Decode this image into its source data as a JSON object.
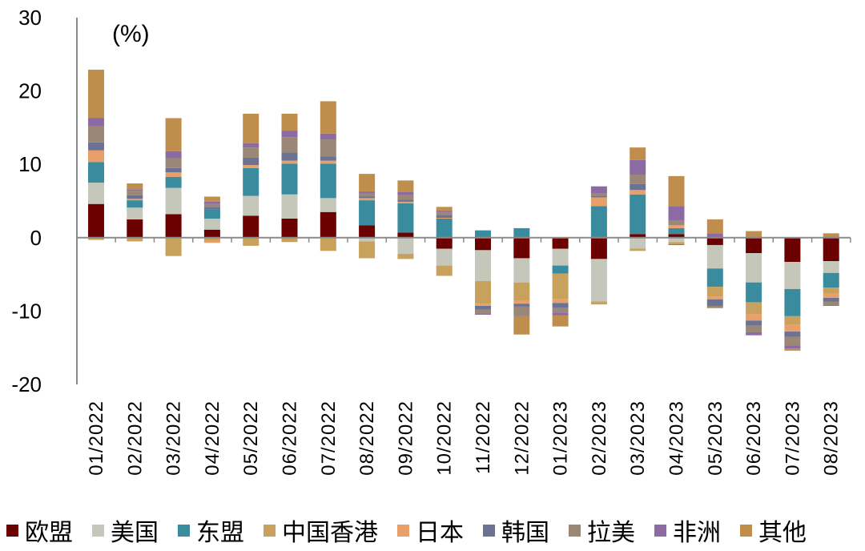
{
  "chart_data": {
    "type": "bar",
    "stacked": true,
    "unit_label": "(%)",
    "categories": [
      "01/2022",
      "02/2022",
      "03/2022",
      "04/2022",
      "05/2022",
      "06/2022",
      "07/2022",
      "08/2022",
      "09/2022",
      "10/2022",
      "11/2022",
      "12/2022",
      "01/2023",
      "02/2023",
      "03/2023",
      "04/2023",
      "05/2023",
      "06/2023",
      "07/2023",
      "08/2023"
    ],
    "yticks": [
      30,
      20,
      10,
      0,
      -10,
      -20
    ],
    "ylim": [
      -20,
      30
    ],
    "series": [
      {
        "name": "欧盟",
        "color": "#6b0000",
        "values": [
          4.6,
          2.5,
          3.2,
          1.1,
          3.0,
          2.6,
          3.5,
          1.7,
          0.7,
          -1.5,
          -1.7,
          -2.8,
          -1.5,
          -2.9,
          0.5,
          0.5,
          -1.0,
          -2.1,
          -3.3,
          -3.2
        ]
      },
      {
        "name": "美国",
        "color": "#c6c7bb",
        "values": [
          2.9,
          1.6,
          3.6,
          1.5,
          2.7,
          3.3,
          1.9,
          -0.5,
          -2.2,
          -2.3,
          -4.2,
          -3.3,
          -2.3,
          -5.8,
          -1.5,
          -0.6,
          -3.2,
          -4.0,
          -3.7,
          -1.6
        ]
      },
      {
        "name": "东盟",
        "color": "#3a8b9d",
        "values": [
          2.8,
          1.0,
          1.5,
          1.3,
          3.8,
          4.2,
          4.7,
          3.4,
          4.0,
          2.6,
          1.0,
          1.3,
          -1.1,
          4.3,
          5.4,
          0.8,
          -2.5,
          -2.7,
          -3.7,
          -2.0
        ]
      },
      {
        "name": "中国香港",
        "color": "#c8a15c",
        "values": [
          -0.3,
          -0.5,
          -2.5,
          -0.4,
          -1.1,
          -0.6,
          -1.8,
          -2.3,
          -0.7,
          -1.4,
          -3.1,
          -2.5,
          -3.5,
          -0.4,
          -0.3,
          -0.3,
          -1.3,
          -1.6,
          -1.2,
          -0.8
        ]
      },
      {
        "name": "日本",
        "color": "#e89f6a",
        "values": [
          1.6,
          0.2,
          0.6,
          -0.3,
          0.4,
          0.4,
          0.4,
          0.3,
          0.2,
          0.1,
          -0.3,
          -0.4,
          -0.5,
          1.2,
          0.6,
          0.4,
          -0.4,
          -0.9,
          -0.9,
          -0.6
        ]
      },
      {
        "name": "韩国",
        "color": "#6c7292",
        "values": [
          1.1,
          0.5,
          0.6,
          0.3,
          1.0,
          1.1,
          0.6,
          0.2,
          0.3,
          0.4,
          -0.5,
          -0.4,
          -0.7,
          0.2,
          0.8,
          -0.1,
          -0.9,
          -0.7,
          -0.7,
          -0.5
        ]
      },
      {
        "name": "拉美",
        "color": "#9a8775",
        "values": [
          2.2,
          0.6,
          1.3,
          0.4,
          1.4,
          2.1,
          2.3,
          0.4,
          0.6,
          0.4,
          -0.5,
          -1.3,
          -0.6,
          0.3,
          1.3,
          0.6,
          -0.3,
          -0.9,
          -1.2,
          -0.5
        ]
      },
      {
        "name": "非洲",
        "color": "#8c6aa4",
        "values": [
          1.1,
          0.2,
          1.0,
          0.3,
          0.6,
          0.9,
          0.8,
          0.3,
          0.4,
          0.2,
          -0.2,
          -0.1,
          -0.4,
          1.0,
          2.0,
          2.0,
          0.6,
          -0.4,
          -0.4,
          -0.1
        ]
      },
      {
        "name": "其他",
        "color": "#c08e4c",
        "values": [
          6.6,
          0.8,
          4.5,
          0.7,
          4.0,
          2.3,
          4.4,
          2.4,
          1.6,
          0.5,
          0.0,
          -2.4,
          -1.5,
          0.0,
          1.7,
          4.1,
          1.9,
          0.9,
          -0.3,
          0.6
        ]
      }
    ]
  }
}
